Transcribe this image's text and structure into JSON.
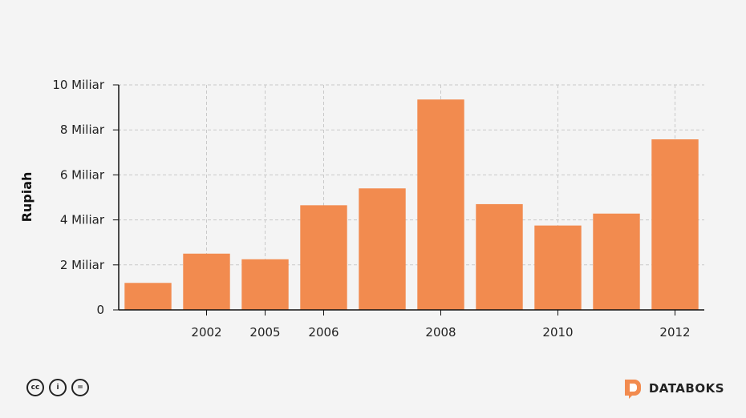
{
  "chart_data": {
    "type": "bar",
    "categories": [
      "",
      "2002",
      "2005",
      "2006",
      "",
      "2008",
      "",
      "2010",
      "",
      "2012"
    ],
    "values": [
      1.2,
      2.5,
      2.25,
      4.65,
      5.4,
      9.35,
      4.7,
      3.75,
      4.28,
      7.58
    ],
    "ylabel": "Rupiah",
    "ylim": [
      0,
      10
    ],
    "yticks": [
      {
        "value": 0,
        "label": "0"
      },
      {
        "value": 2,
        "label": "2 Miliar"
      },
      {
        "value": 4,
        "label": "4 Miliar"
      },
      {
        "value": 6,
        "label": "6 Miliar"
      },
      {
        "value": 8,
        "label": "8 Miliar"
      },
      {
        "value": 10,
        "label": "10 Miliar"
      }
    ],
    "grid": true,
    "bar_color": "#f28b4f"
  },
  "footer": {
    "license_icons": [
      "creative-commons-icon",
      "attribution-icon",
      "no-derivatives-icon"
    ],
    "license_glyphs": [
      "cc",
      "i",
      "="
    ],
    "brand_name": "DATABOKS",
    "brand_color": "#f28b4f"
  }
}
